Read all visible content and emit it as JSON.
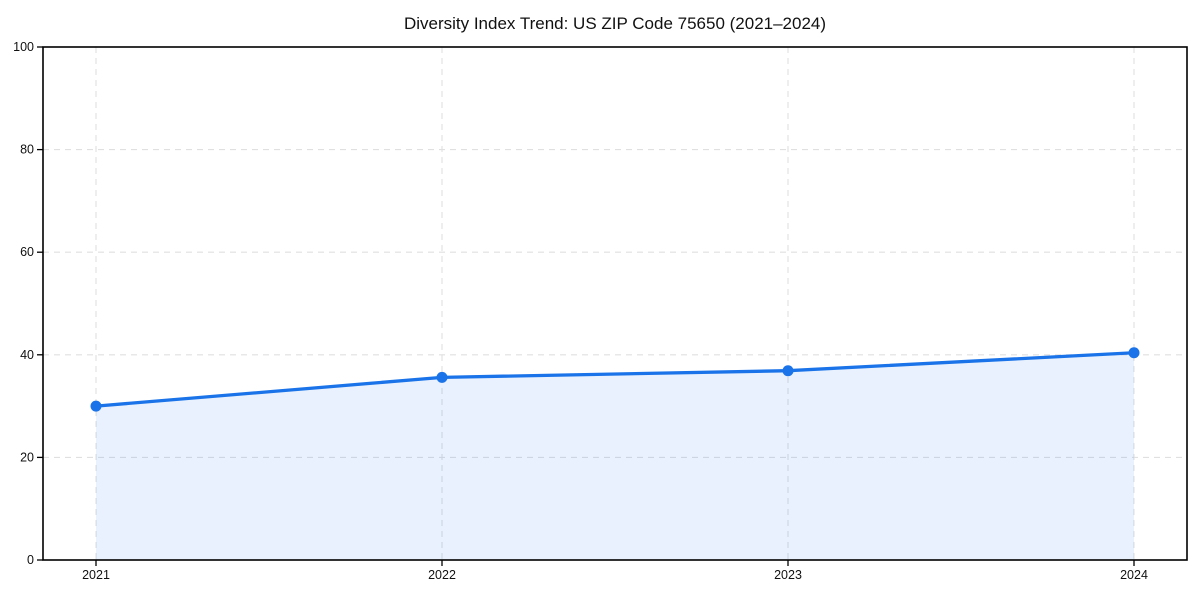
{
  "chart_data": {
    "type": "line",
    "title": "Diversity Index Trend: US ZIP Code 75650 (2021–2024)",
    "series_name": "Diversity Index",
    "x": [
      2021,
      2022,
      2023,
      2024
    ],
    "y": [
      30.0,
      35.6,
      36.9,
      40.4
    ],
    "xticks": [
      "2021",
      "2022",
      "2023",
      "2024"
    ],
    "yticks": [
      0,
      20,
      40,
      60,
      80,
      100
    ],
    "ylim": [
      0,
      100
    ],
    "xlabel": "",
    "ylabel": "",
    "grid": true,
    "grid_style": "dashed",
    "legend": false,
    "marker": "circle",
    "area_fill": true
  },
  "colors": {
    "line": "#1a73e8",
    "marker": "#1a73e8",
    "area": "rgba(26,115,232,0.10)",
    "grid": "#e0e0e0",
    "spine": "#000000",
    "tick": "#000000",
    "text": "#111111"
  }
}
